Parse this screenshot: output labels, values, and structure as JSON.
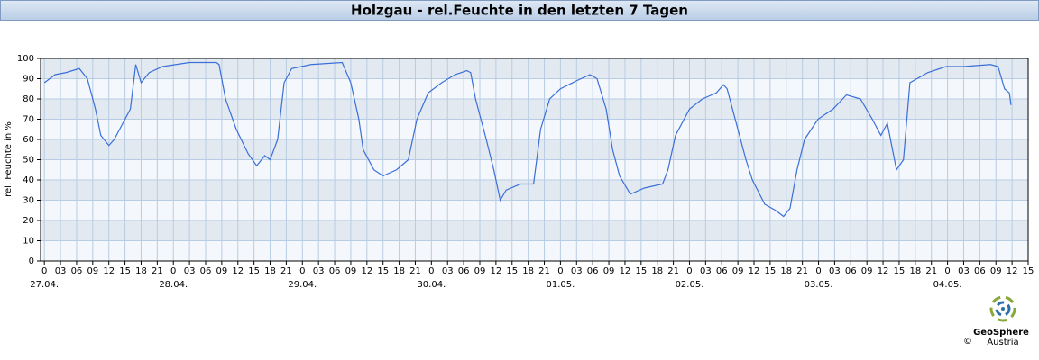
{
  "chart_data": {
    "type": "line",
    "title": "Holzgau - rel.Feuchte in den letzten 7 Tagen",
    "y_label": "rel. Feuchte in %",
    "x": [
      0,
      2,
      4,
      6.5,
      8,
      9.5,
      10.5,
      12,
      13,
      15,
      16,
      17,
      18,
      19.5,
      22,
      24.5,
      27,
      32,
      32.5,
      33.7,
      35.7,
      37.9,
      39.5,
      41,
      42,
      43.4,
      44.6,
      46,
      49.6,
      55.4,
      57,
      58.5,
      59.3,
      61.3,
      63,
      65.5,
      67.7,
      69.3,
      71.4,
      73.9,
      76.4,
      78.6,
      79.3,
      80.2,
      82.2,
      83.6,
      84.8,
      85.9,
      88.6,
      91,
      92.3,
      94,
      96,
      99,
      101.5,
      102.8,
      104.5,
      105.7,
      107,
      109,
      111.6,
      115,
      116,
      117.4,
      120,
      122.4,
      125,
      126.3,
      127,
      129,
      130.5,
      131.7,
      134,
      136,
      137.5,
      138.7,
      140,
      141.4,
      143.9,
      146.7,
      149.2,
      151.8,
      154,
      155.6,
      156.8,
      158.5,
      159.8,
      161,
      164.3,
      167.7,
      171,
      176,
      177.4,
      178.6,
      179.5,
      179.8
    ],
    "series": [
      {
        "name": "rel. Feuchte",
        "color": "#3a6fd8",
        "values": [
          88,
          92,
          93,
          95,
          90,
          75,
          62,
          57,
          60,
          70,
          75,
          97,
          88,
          93,
          96,
          97,
          98,
          98,
          97,
          80,
          65,
          53,
          47,
          52,
          50,
          60,
          88,
          95,
          97,
          98,
          88,
          70,
          55,
          45,
          42,
          45,
          50,
          70,
          83,
          88,
          92,
          94,
          93,
          80,
          60,
          45,
          30,
          35,
          38,
          38,
          65,
          80,
          85,
          89,
          92,
          90,
          75,
          55,
          42,
          33,
          36,
          38,
          45,
          62,
          75,
          80,
          83,
          87,
          85,
          65,
          50,
          40,
          28,
          25,
          22,
          26,
          45,
          60,
          70,
          75,
          82,
          80,
          70,
          62,
          68,
          45,
          50,
          88,
          93,
          96,
          96,
          97,
          96,
          85,
          83,
          77
        ]
      }
    ],
    "xlim": [
      -0.7,
      183
    ],
    "ylim": [
      0,
      100
    ],
    "yticks": [
      0,
      10,
      20,
      30,
      40,
      50,
      60,
      70,
      80,
      90,
      100
    ],
    "xticks": [
      0,
      {
        "value": 3,
        "label": "03"
      },
      {
        "value": 6,
        "label": "06"
      },
      {
        "value": 9,
        "label": "09"
      },
      12,
      15,
      18,
      21,
      {
        "value": 24,
        "label": "0"
      },
      {
        "value": 27,
        "label": "03"
      },
      {
        "value": 30,
        "label": "06"
      },
      {
        "value": 33,
        "label": "09"
      },
      {
        "value": 36,
        "label": "12"
      },
      {
        "value": 39,
        "label": "15"
      },
      {
        "value": 42,
        "label": "18"
      },
      {
        "value": 45,
        "label": "21"
      },
      {
        "value": 48,
        "label": "0"
      },
      {
        "value": 51,
        "label": "03"
      },
      {
        "value": 54,
        "label": "06"
      },
      {
        "value": 57,
        "label": "09"
      },
      {
        "value": 60,
        "label": "12"
      },
      {
        "value": 63,
        "label": "15"
      },
      {
        "value": 66,
        "label": "18"
      },
      {
        "value": 69,
        "label": "21"
      },
      {
        "value": 72,
        "label": "0"
      },
      {
        "value": 75,
        "label": "03"
      },
      {
        "value": 78,
        "label": "06"
      },
      {
        "value": 81,
        "label": "09"
      },
      {
        "value": 84,
        "label": "12"
      },
      {
        "value": 87,
        "label": "15"
      },
      {
        "value": 90,
        "label": "18"
      },
      {
        "value": 93,
        "label": "21"
      },
      {
        "value": 96,
        "label": "0"
      },
      {
        "value": 99,
        "label": "03"
      },
      {
        "value": 102,
        "label": "06"
      },
      {
        "value": 105,
        "label": "09"
      },
      {
        "value": 108,
        "label": "12"
      },
      {
        "value": 111,
        "label": "15"
      },
      {
        "value": 114,
        "label": "18"
      },
      {
        "value": 117,
        "label": "21"
      },
      {
        "value": 120,
        "label": "0"
      },
      {
        "value": 123,
        "label": "03"
      },
      {
        "value": 126,
        "label": "06"
      },
      {
        "value": 129,
        "label": "09"
      },
      {
        "value": 132,
        "label": "12"
      },
      {
        "value": 135,
        "label": "15"
      },
      {
        "value": 138,
        "label": "18"
      },
      {
        "value": 141,
        "label": "21"
      },
      {
        "value": 144,
        "label": "0"
      },
      {
        "value": 147,
        "label": "03"
      },
      {
        "value": 150,
        "label": "06"
      },
      {
        "value": 153,
        "label": "09"
      },
      {
        "value": 156,
        "label": "12"
      },
      {
        "value": 159,
        "label": "15"
      },
      {
        "value": 162,
        "label": "18"
      },
      {
        "value": 165,
        "label": "21"
      },
      {
        "value": 168,
        "label": "0"
      },
      {
        "value": 171,
        "label": "03"
      },
      {
        "value": 174,
        "label": "06"
      },
      {
        "value": 177,
        "label": "09"
      },
      {
        "value": 180,
        "label": "12"
      },
      {
        "value": 183,
        "label": "15"
      }
    ],
    "day_labels": [
      {
        "value": 0,
        "label": "27.04."
      },
      {
        "value": 24,
        "label": "28.04."
      },
      {
        "value": 48,
        "label": "29.04."
      },
      {
        "value": 72,
        "label": "30.04."
      },
      {
        "value": 96,
        "label": "01.05."
      },
      {
        "value": 120,
        "label": "02.05."
      },
      {
        "value": 144,
        "label": "03.05."
      },
      {
        "value": 168,
        "label": "04.05."
      }
    ],
    "grid": true
  },
  "footer": {
    "logo_name": "GeoSphere",
    "logo_sub": "Austria",
    "copyright": "©"
  }
}
